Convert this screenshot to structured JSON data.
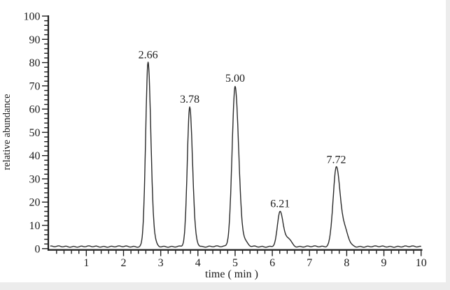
{
  "page": {
    "background_color": "#ffffff",
    "scan_edge_color": "#ececec"
  },
  "chart_data": {
    "type": "line",
    "subtype": "chromatogram",
    "title": "",
    "xlabel": "time ( min )",
    "ylabel": "relative abundance",
    "line_color": "#2b2b2b",
    "axis_color": "#1f1f1f",
    "text_color": "#1c1c1c",
    "grid": false,
    "legend": false,
    "x_axis": {
      "min": 0,
      "max": 10,
      "major_step": 1,
      "minor_step": 0.2,
      "tick_labels": [
        "1",
        "2",
        "3",
        "4",
        "5",
        "6",
        "7",
        "8",
        "9",
        "10"
      ]
    },
    "y_axis": {
      "min": 0,
      "max": 100,
      "major_step": 10,
      "minor_step": 2,
      "tick_labels": [
        "0",
        "10",
        "20",
        "30",
        "40",
        "50",
        "60",
        "70",
        "80",
        "90",
        "100"
      ]
    },
    "baseline_abundance": 0.9,
    "peaks": [
      {
        "label": "2.66",
        "time": 2.66,
        "abundance": 80,
        "sigma_left": 0.065,
        "sigma_right": 0.075,
        "shoulders": [
          {
            "dt": 0.18,
            "height": 1.5,
            "sigma": 0.05
          }
        ]
      },
      {
        "label": "3.78",
        "time": 3.78,
        "abundance": 61,
        "sigma_left": 0.065,
        "sigma_right": 0.075,
        "shoulders": [
          {
            "dt": 0.18,
            "height": 1.2,
            "sigma": 0.05
          }
        ]
      },
      {
        "label": "5.00",
        "time": 5.0,
        "abundance": 70,
        "sigma_left": 0.08,
        "sigma_right": 0.095,
        "shoulders": [
          {
            "dt": 0.26,
            "height": 2.0,
            "sigma": 0.07
          }
        ]
      },
      {
        "label": "6.21",
        "time": 6.21,
        "abundance": 16,
        "sigma_left": 0.07,
        "sigma_right": 0.08,
        "shoulders": [
          {
            "dt": 0.22,
            "height": 3.5,
            "sigma": 0.08
          }
        ]
      },
      {
        "label": "7.72",
        "time": 7.72,
        "abundance": 35,
        "sigma_left": 0.085,
        "sigma_right": 0.105,
        "shoulders": [
          {
            "dt": 0.24,
            "height": 6.0,
            "sigma": 0.09
          }
        ]
      }
    ]
  }
}
